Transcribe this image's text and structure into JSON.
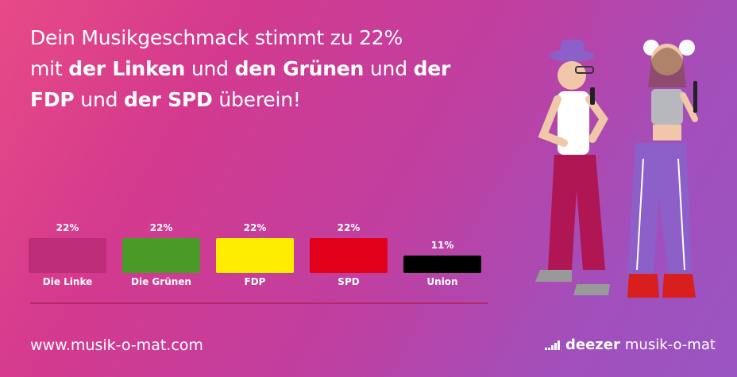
{
  "headline": {
    "p1": "Dein Musikgeschmack stimmt zu 22%",
    "p2": "mit ",
    "b1": "der Linken",
    "p3": " und ",
    "b2": "den Grünen",
    "p4": " und ",
    "b3": "der",
    "b4": "FDP",
    "p5": " und ",
    "b5": "der SPD",
    "p6": " überein!"
  },
  "chart_data": {
    "type": "bar",
    "categories": [
      "Die Linke",
      "Die Grünen",
      "FDP",
      "SPD",
      "Union"
    ],
    "values": [
      22,
      22,
      22,
      22,
      11
    ],
    "value_labels": [
      "22%",
      "22%",
      "22%",
      "22%",
      "11%"
    ],
    "colors": [
      "#be2d79",
      "#4a9a28",
      "#ffed00",
      "#e3001b",
      "#000000"
    ],
    "ylim": [
      0,
      22
    ],
    "grid": false,
    "legend": "none"
  },
  "footer": {
    "url": "www.musik-o-mat.com",
    "deezer": "deezer",
    "brand": "musik-o-mat"
  },
  "icons": {
    "brand_icon": "deezer-equalizer-icon"
  }
}
